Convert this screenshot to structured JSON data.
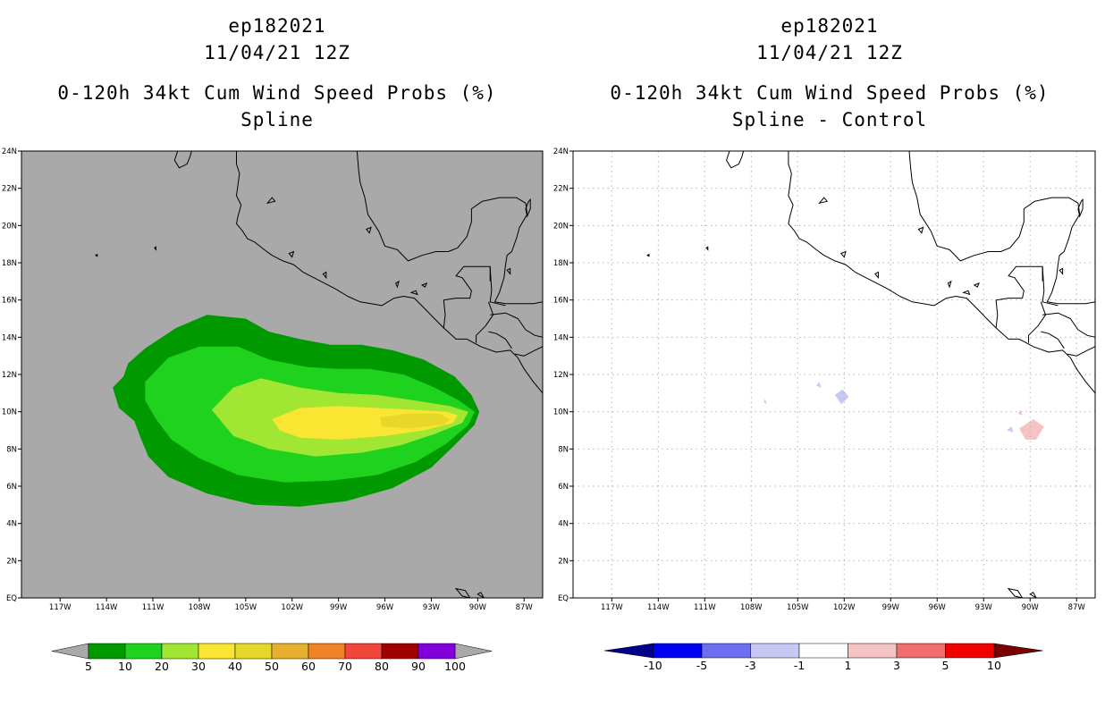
{
  "left_panel": {
    "storm_id": "ep182021",
    "date": "11/04/21 12Z",
    "product": "0-120h 34kt Cum Wind Speed Probs (%)",
    "method": "Spline",
    "background": "#a9a9a9"
  },
  "right_panel": {
    "storm_id": "ep182021",
    "date": "11/04/21 12Z",
    "product": "0-120h 34kt Cum Wind Speed Probs (%)",
    "method": "Spline - Control",
    "background": "#ffffff"
  },
  "lat_ticks": [
    "EQ",
    "2N",
    "4N",
    "6N",
    "8N",
    "10N",
    "12N",
    "14N",
    "16N",
    "18N",
    "20N",
    "22N",
    "24N"
  ],
  "lon_ticks": [
    "117W",
    "114W",
    "111W",
    "108W",
    "105W",
    "102W",
    "99W",
    "96W",
    "93W",
    "90W",
    "87W"
  ],
  "map_extent": {
    "lon_min": -119.5,
    "lon_max": -85.8,
    "lat_min": 0,
    "lat_max": 24
  },
  "chart_data": [
    {
      "type": "heatmap",
      "title": "0-120h 34kt Cum Wind Speed Probs (%) Spline",
      "units": "%",
      "levels": [
        5,
        10,
        20,
        30,
        40,
        50,
        60,
        70,
        80,
        90,
        100
      ],
      "level_labels": [
        "5",
        "10",
        "20",
        "30",
        "40",
        "50",
        "60",
        "70",
        "80",
        "90",
        "100"
      ],
      "colors": [
        "#009a00",
        "#1ed21e",
        "#a0e632",
        "#fae632",
        "#e6d728",
        "#e6af2d",
        "#f08228",
        "#f0463c",
        "#a00000",
        "#8200dc"
      ],
      "filled_regions": [
        {
          "min_prob": 5,
          "color": "#009a00",
          "outline": [
            [
              -112.6,
              12.6
            ],
            [
              -111.5,
              13.4
            ],
            [
              -109.5,
              14.5
            ],
            [
              -107.5,
              15.2
            ],
            [
              -105,
              15
            ],
            [
              -103.5,
              14.3
            ],
            [
              -101.5,
              13.9
            ],
            [
              -99.5,
              13.6
            ],
            [
              -97.5,
              13.6
            ],
            [
              -95.5,
              13.3
            ],
            [
              -93.5,
              12.8
            ],
            [
              -91.5,
              11.9
            ],
            [
              -90.4,
              10.9
            ],
            [
              -89.9,
              10
            ],
            [
              -90.2,
              9.3
            ],
            [
              -91.5,
              8.2
            ],
            [
              -93,
              7
            ],
            [
              -95.5,
              5.9
            ],
            [
              -98.5,
              5.2
            ],
            [
              -101.5,
              4.9
            ],
            [
              -104.5,
              5
            ],
            [
              -107.5,
              5.6
            ],
            [
              -110,
              6.5
            ],
            [
              -111.3,
              7.6
            ],
            [
              -111.8,
              8.6
            ],
            [
              -112.2,
              9.5
            ],
            [
              -113.2,
              10.2
            ],
            [
              -113.6,
              11.3
            ],
            [
              -112.9,
              11.9
            ]
          ]
        },
        {
          "min_prob": 10,
          "color": "#1ed21e",
          "outline": [
            [
              -111.5,
              11.6
            ],
            [
              -110,
              12.9
            ],
            [
              -108,
              13.5
            ],
            [
              -105.5,
              13.5
            ],
            [
              -103.5,
              12.8
            ],
            [
              -101,
              12.4
            ],
            [
              -99,
              12.3
            ],
            [
              -97,
              12.3
            ],
            [
              -94.8,
              12
            ],
            [
              -92.8,
              11.3
            ],
            [
              -91.2,
              10.6
            ],
            [
              -90.2,
              10
            ],
            [
              -90.6,
              9.3
            ],
            [
              -92,
              8.3
            ],
            [
              -94,
              7.3
            ],
            [
              -96.5,
              6.6
            ],
            [
              -99.5,
              6.3
            ],
            [
              -102.5,
              6.2
            ],
            [
              -105.5,
              6.6
            ],
            [
              -108,
              7.5
            ],
            [
              -109.8,
              8.5
            ],
            [
              -110.8,
              9.6
            ],
            [
              -111.5,
              10.6
            ]
          ]
        },
        {
          "min_prob": 20,
          "color": "#a0e632",
          "outline": [
            [
              -107.2,
              10.1
            ],
            [
              -105.8,
              11.3
            ],
            [
              -104,
              11.8
            ],
            [
              -101.5,
              11.3
            ],
            [
              -99,
              11
            ],
            [
              -96.5,
              10.9
            ],
            [
              -94,
              10.6
            ],
            [
              -91.8,
              10.3
            ],
            [
              -90.6,
              10
            ],
            [
              -91,
              9.4
            ],
            [
              -92.8,
              8.8
            ],
            [
              -95,
              8.2
            ],
            [
              -97.5,
              7.8
            ],
            [
              -100.5,
              7.6
            ],
            [
              -103.5,
              8
            ],
            [
              -105.8,
              8.7
            ]
          ]
        },
        {
          "min_prob": 30,
          "color": "#fae632",
          "outline": [
            [
              -103.3,
              9.6
            ],
            [
              -101.5,
              10.2
            ],
            [
              -99,
              10.3
            ],
            [
              -96.5,
              10.2
            ],
            [
              -94,
              10.1
            ],
            [
              -92,
              10
            ],
            [
              -91.3,
              9.8
            ],
            [
              -91.6,
              9.4
            ],
            [
              -93.5,
              9
            ],
            [
              -96,
              8.7
            ],
            [
              -99,
              8.5
            ],
            [
              -101.5,
              8.6
            ],
            [
              -102.8,
              9
            ]
          ]
        },
        {
          "min_prob": 40,
          "color": "#e6d728",
          "outline": [
            [
              -96.3,
              9.7
            ],
            [
              -94.5,
              9.9
            ],
            [
              -92.5,
              9.9
            ],
            [
              -91.8,
              9.6
            ],
            [
              -92.2,
              9.3
            ],
            [
              -94.5,
              9.1
            ],
            [
              -96.2,
              9.2
            ]
          ]
        }
      ]
    },
    {
      "type": "heatmap",
      "title": "0-120h 34kt Cum Wind Speed Probs (%) Spline - Control",
      "units": "%",
      "levels": [
        -10,
        -5,
        -3,
        -1,
        1,
        3,
        5,
        10
      ],
      "level_labels": [
        "-10",
        "-5",
        "-3",
        "-1",
        "1",
        "3",
        "5",
        "10"
      ],
      "colors": [
        "#00008c",
        "#0000f0",
        "#6e6ef0",
        "#c8c8f5",
        "#ffffff",
        "#f5c3c3",
        "#f06e6e",
        "#f00000",
        "#780000"
      ],
      "filled_regions": [
        {
          "range": "-3 to -1",
          "color": "#c8c8f5",
          "outline": [
            [
              -102.6,
              10.9
            ],
            [
              -102.1,
              11.2
            ],
            [
              -101.7,
              10.8
            ],
            [
              -102.2,
              10.4
            ]
          ]
        },
        {
          "range": "-3 to -1",
          "color": "#c8c8f5",
          "outline": [
            [
              -103.8,
              11.4
            ],
            [
              -103.6,
              11.6
            ],
            [
              -103.5,
              11.3
            ]
          ]
        },
        {
          "range": "-3 to -1",
          "color": "#c8c8f5",
          "outline": [
            [
              -91.5,
              9
            ],
            [
              -91.2,
              9.2
            ],
            [
              -91.1,
              8.9
            ]
          ]
        },
        {
          "range": "1 to 3",
          "color": "#f5c3c3",
          "outline": [
            [
              -90.7,
              9.1
            ],
            [
              -89.8,
              9.6
            ],
            [
              -89.1,
              9.2
            ],
            [
              -89.6,
              8.5
            ],
            [
              -90.3,
              8.5
            ]
          ]
        },
        {
          "range": "1 to 3",
          "color": "#f5c3c3",
          "outline": [
            [
              -90.8,
              9.9
            ],
            [
              -90.6,
              10.1
            ],
            [
              -90.5,
              9.8
            ]
          ]
        },
        {
          "range": "1 to 3",
          "color": "#f5c3c3",
          "outline": [
            [
              -107.2,
              10.5
            ],
            [
              -107.1,
              10.7
            ],
            [
              -107,
              10.4
            ]
          ]
        }
      ]
    }
  ],
  "coastline": [
    [
      [
        -109.4,
        24
      ],
      [
        -109.6,
        23.5
      ],
      [
        -109.3,
        23.1
      ],
      [
        -108.8,
        23.3
      ],
      [
        -108.6,
        23.7
      ],
      [
        -108.5,
        24
      ]
    ],
    [
      [
        -105.6,
        24
      ],
      [
        -105.6,
        23.3
      ],
      [
        -105.4,
        22.8
      ],
      [
        -105.5,
        22.2
      ],
      [
        -105.6,
        21.6
      ],
      [
        -105.3,
        21.1
      ],
      [
        -105.5,
        20.5
      ],
      [
        -105.6,
        20.1
      ],
      [
        -105.2,
        19.7
      ],
      [
        -104.9,
        19.3
      ],
      [
        -104.4,
        19.1
      ],
      [
        -103.8,
        18.7
      ],
      [
        -103.3,
        18.4
      ],
      [
        -102.6,
        18.1
      ],
      [
        -101.9,
        17.9
      ],
      [
        -101.3,
        17.5
      ],
      [
        -100.6,
        17.2
      ],
      [
        -99.9,
        16.9
      ],
      [
        -99.2,
        16.6
      ],
      [
        -98.4,
        16.2
      ],
      [
        -97.6,
        15.9
      ],
      [
        -96.9,
        15.8
      ],
      [
        -96.2,
        15.7
      ],
      [
        -95.4,
        16.1
      ],
      [
        -94.8,
        16.2
      ],
      [
        -94.1,
        16.1
      ],
      [
        -93.5,
        15.6
      ],
      [
        -92.8,
        15
      ],
      [
        -92.2,
        14.5
      ],
      [
        -91.4,
        13.9
      ],
      [
        -90.7,
        13.9
      ],
      [
        -89.8,
        13.5
      ],
      [
        -88.8,
        13.2
      ],
      [
        -87.9,
        13.3
      ],
      [
        -87.4,
        12.9
      ],
      [
        -87,
        12.3
      ],
      [
        -86.4,
        11.6
      ],
      [
        -85.8,
        11
      ]
    ],
    [
      [
        -97.8,
        24
      ],
      [
        -97.7,
        23
      ],
      [
        -97.6,
        22.3
      ],
      [
        -97.3,
        21.5
      ],
      [
        -97.1,
        20.6
      ],
      [
        -96.4,
        19.7
      ],
      [
        -96,
        18.9
      ],
      [
        -95.2,
        18.7
      ],
      [
        -94.5,
        18.1
      ],
      [
        -93.6,
        18.4
      ],
      [
        -92.7,
        18.6
      ],
      [
        -91.9,
        18.6
      ],
      [
        -91.3,
        18.8
      ],
      [
        -90.7,
        19.4
      ],
      [
        -90.4,
        20.2
      ],
      [
        -90.4,
        20.9
      ],
      [
        -89.7,
        21.3
      ],
      [
        -88.6,
        21.5
      ],
      [
        -87.5,
        21.5
      ],
      [
        -86.9,
        21.2
      ],
      [
        -86.8,
        20.6
      ],
      [
        -87.3,
        19.9
      ],
      [
        -87.5,
        19.3
      ],
      [
        -87.8,
        18.6
      ],
      [
        -88.1,
        18.4
      ],
      [
        -88.2,
        17.9
      ],
      [
        -88.3,
        17.2
      ],
      [
        -88.6,
        16.4
      ],
      [
        -88.9,
        15.9
      ],
      [
        -88.2,
        15.8
      ],
      [
        -87.4,
        15.8
      ],
      [
        -86.4,
        15.8
      ],
      [
        -85.8,
        15.9
      ]
    ]
  ],
  "borders": [
    [
      [
        -92.2,
        14.5
      ],
      [
        -92.1,
        15.2
      ],
      [
        -92.2,
        16
      ],
      [
        -91.4,
        16.1
      ],
      [
        -90.5,
        16.1
      ],
      [
        -90.4,
        16.5
      ],
      [
        -91,
        17.2
      ],
      [
        -91.4,
        17.3
      ],
      [
        -90.9,
        17.8
      ],
      [
        -89.2,
        17.8
      ],
      [
        -89.2,
        17
      ]
    ],
    [
      [
        -89.2,
        17.8
      ],
      [
        -89.1,
        16.5
      ],
      [
        -89.2,
        15.9
      ],
      [
        -88.2,
        15.7
      ]
    ],
    [
      [
        -89.3,
        15.9
      ],
      [
        -89,
        15.2
      ],
      [
        -89.5,
        14.6
      ],
      [
        -90.1,
        14.1
      ],
      [
        -90.1,
        13.7
      ]
    ],
    [
      [
        -89.3,
        14.3
      ],
      [
        -88.8,
        14.2
      ],
      [
        -88.2,
        13.9
      ],
      [
        -87.8,
        13.4
      ]
    ],
    [
      [
        -89.2,
        15.2
      ],
      [
        -88.2,
        15.3
      ],
      [
        -87.4,
        15
      ],
      [
        -86.9,
        14.4
      ],
      [
        -86.3,
        14.1
      ],
      [
        -85.8,
        14
      ]
    ],
    [
      [
        -87.6,
        13.1
      ],
      [
        -87,
        13
      ],
      [
        -86.3,
        13.3
      ],
      [
        -85.8,
        13.5
      ]
    ]
  ],
  "islands": [
    [
      [
        -110.9,
        18.8
      ],
      [
        -110.8,
        18.85
      ],
      [
        -110.8,
        18.7
      ]
    ],
    [
      [
        -114.7,
        18.4
      ],
      [
        -114.6,
        18.45
      ],
      [
        -114.6,
        18.35
      ]
    ],
    [
      [
        -86.7,
        21.3
      ],
      [
        -86.6,
        21.4
      ],
      [
        -86.6,
        20.9
      ],
      [
        -86.8,
        20.5
      ],
      [
        -86.9,
        20.9
      ]
    ],
    [
      [
        -88.1,
        17.6
      ],
      [
        -87.9,
        17.7
      ],
      [
        -87.9,
        17.4
      ]
    ],
    [
      [
        -91.4,
        0.5
      ],
      [
        -90.8,
        0.4
      ],
      [
        -90.5,
        0
      ],
      [
        -91,
        0.1
      ]
    ],
    [
      [
        -90,
        0.2
      ],
      [
        -89.8,
        0.3
      ],
      [
        -89.6,
        0
      ]
    ],
    [
      [
        -103.6,
        21.2
      ],
      [
        -103.1,
        21.3
      ],
      [
        -103.3,
        21.5
      ]
    ],
    [
      [
        -97.2,
        19.8
      ],
      [
        -96.9,
        19.9
      ],
      [
        -97,
        19.6
      ]
    ],
    [
      [
        -94.3,
        16.4
      ],
      [
        -94,
        16.5
      ],
      [
        -93.9,
        16.3
      ]
    ],
    [
      [
        -93.6,
        16.8
      ],
      [
        -93.3,
        16.9
      ],
      [
        -93.4,
        16.7
      ]
    ],
    [
      [
        -102.2,
        18.5
      ],
      [
        -101.9,
        18.6
      ],
      [
        -102,
        18.3
      ]
    ],
    [
      [
        -100,
        17.4
      ],
      [
        -99.8,
        17.5
      ],
      [
        -99.8,
        17.2
      ]
    ],
    [
      [
        -95.3,
        16.9
      ],
      [
        -95.1,
        17
      ],
      [
        -95.2,
        16.7
      ]
    ]
  ],
  "colors": {
    "axis": "#000000",
    "grid": "#b4b4b4",
    "coast": "#000000"
  }
}
